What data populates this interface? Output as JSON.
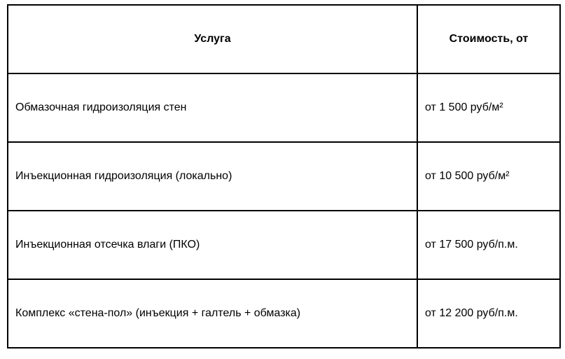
{
  "table": {
    "headers": [
      "Услуга",
      "Стоимость, от"
    ],
    "rows": [
      [
        "Обмазочная гидроизоляция стен",
        "от 1 500 руб/м²"
      ],
      [
        "Инъекционная гидроизоляция (локально)",
        "от 10 500 руб/м²"
      ],
      [
        "Инъекционная отсечка влаги (ПКО)",
        "от 17 500 руб/п.м."
      ],
      [
        "Комплекс «стена-пол» (инъекция + галтель + обмазка)",
        "от 12 200 руб/п.м."
      ]
    ]
  }
}
